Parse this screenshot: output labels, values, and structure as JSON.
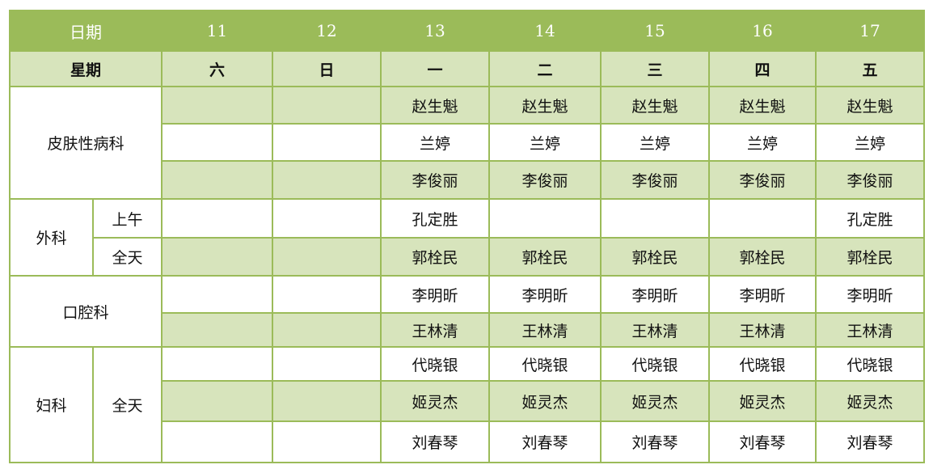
{
  "colors": {
    "header": "#9bbb59",
    "band": "#d7e4bc",
    "border": "#9bbb59"
  },
  "header": {
    "date_label": "日期",
    "dates": [
      "11",
      "12",
      "13",
      "14",
      "15",
      "16",
      "17"
    ]
  },
  "weekday": {
    "label": "星期",
    "days": [
      "六",
      "日",
      "一",
      "二",
      "三",
      "四",
      "五"
    ]
  },
  "departments": [
    {
      "name": "皮肤性病科",
      "sessions": [
        {
          "label": "",
          "rows": [
            [
              "",
              "",
              "赵生魁",
              "赵生魁",
              "赵生魁",
              "赵生魁",
              "赵生魁"
            ],
            [
              "",
              "",
              "兰婷",
              "兰婷",
              "兰婷",
              "兰婷",
              "兰婷"
            ],
            [
              "",
              "",
              "李俊丽",
              "李俊丽",
              "李俊丽",
              "李俊丽",
              "李俊丽"
            ]
          ]
        }
      ]
    },
    {
      "name": "外科",
      "sessions": [
        {
          "label": "上午",
          "rows": [
            [
              "",
              "",
              "孔定胜",
              "",
              "",
              "",
              "孔定胜"
            ]
          ]
        },
        {
          "label": "全天",
          "rows": [
            [
              "",
              "",
              "郭栓民",
              "郭栓民",
              "郭栓民",
              "郭栓民",
              "郭栓民"
            ]
          ]
        }
      ]
    },
    {
      "name": "口腔科",
      "sessions": [
        {
          "label": "",
          "rows": [
            [
              "",
              "",
              "李明昕",
              "李明昕",
              "李明昕",
              "李明昕",
              "李明昕"
            ],
            [
              "",
              "",
              "王林清",
              "王林清",
              "王林清",
              "王林清",
              "王林清"
            ]
          ]
        }
      ]
    },
    {
      "name": "妇科",
      "sessions": [
        {
          "label": "全天",
          "rows": [
            [
              "",
              "",
              "代晓银",
              "代晓银",
              "代晓银",
              "代晓银",
              "代晓银"
            ],
            [
              "",
              "",
              "姬灵杰",
              "姬灵杰",
              "姬灵杰",
              "姬灵杰",
              "姬灵杰"
            ],
            [
              "",
              "",
              "刘春琴",
              "刘春琴",
              "刘春琴",
              "刘春琴",
              "刘春琴"
            ]
          ]
        }
      ]
    }
  ]
}
